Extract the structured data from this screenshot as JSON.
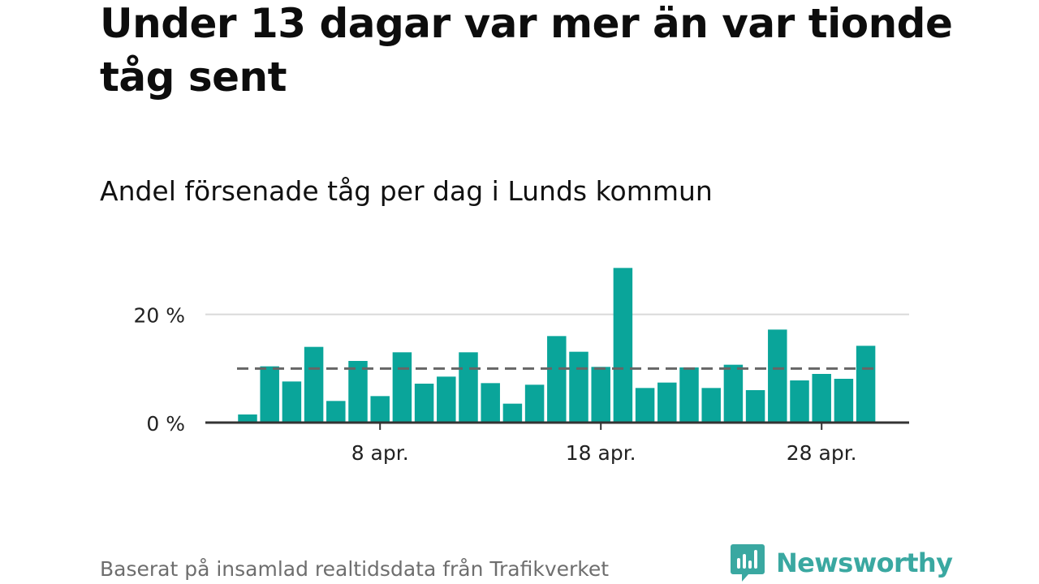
{
  "header": {
    "title": "Under 13 dagar var mer än var tionde tåg sent",
    "subtitle": "Andel försenade tåg per dag i Lunds kommun"
  },
  "footer": {
    "source": "Baserat på insamlad realtidsdata från Trafikverket",
    "brand": "Newsworthy",
    "brand_color": "#3aa8a1",
    "brand_icon": "newsworthy-bar-chart-icon"
  },
  "colors": {
    "bar": "#0aa59a",
    "grid": "#d9d9d9",
    "axis": "#333333",
    "threshold": "#666666",
    "text": "#222222"
  },
  "chart_data": {
    "type": "bar",
    "x": [
      "2 apr.",
      "3 apr.",
      "4 apr.",
      "5 apr.",
      "6 apr.",
      "7 apr.",
      "8 apr.",
      "9 apr.",
      "10 apr.",
      "11 apr.",
      "12 apr.",
      "13 apr.",
      "14 apr.",
      "15 apr.",
      "16 apr.",
      "17 apr.",
      "18 apr.",
      "19 apr.",
      "20 apr.",
      "21 apr.",
      "22 apr.",
      "23 apr.",
      "24 apr.",
      "25 apr.",
      "26 apr.",
      "27 apr.",
      "28 apr.",
      "29 apr.",
      "30 apr."
    ],
    "values": [
      1.5,
      10.4,
      7.6,
      14.0,
      4.0,
      11.4,
      4.9,
      13.0,
      7.2,
      8.5,
      13.0,
      7.3,
      3.5,
      7.0,
      16.0,
      13.1,
      10.3,
      28.6,
      6.4,
      7.4,
      10.2,
      6.4,
      10.7,
      6.0,
      17.2,
      7.8,
      9.0,
      8.1,
      14.2
    ],
    "xticks": [
      {
        "at": "8 apr.",
        "label": "8 apr."
      },
      {
        "at": "18 apr.",
        "label": "18 apr."
      },
      {
        "at": "28 apr.",
        "label": "28 apr."
      }
    ],
    "yticks": [
      {
        "value": 0,
        "label": "0 %"
      },
      {
        "value": 20,
        "label": "20 %"
      }
    ],
    "ylim": [
      0,
      30
    ],
    "threshold": 10,
    "threshold_style": "dashed",
    "grid": true,
    "xlabel": "",
    "ylabel": ""
  }
}
